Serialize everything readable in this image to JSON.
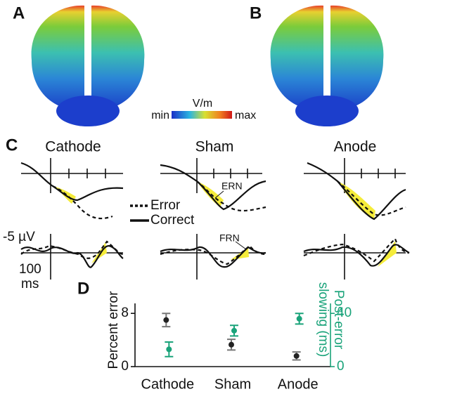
{
  "panels": {
    "a": "A",
    "b": "B",
    "c": "C",
    "d": "D"
  },
  "colorbar": {
    "unit": "V/m",
    "min": "min",
    "max": "max"
  },
  "erp": {
    "conditions": [
      "Cathode",
      "Sham",
      "Anode"
    ],
    "legend": {
      "error": "Error",
      "correct": "Correct"
    },
    "annotations": {
      "ern": "ERN",
      "frn": "FRN"
    },
    "scale": {
      "amplitude": "-5 µV",
      "time": "100",
      "time_unit": "ms"
    }
  },
  "chart_data": {
    "type": "errorbar",
    "categories": [
      "Cathode",
      "Sham",
      "Anode"
    ],
    "ylabel": "Percent error",
    "y2label": "Post-error slowing (ms)",
    "ylim": [
      0,
      9.5
    ],
    "yticks": [
      0,
      8
    ],
    "y2lim": [
      0,
      47.5
    ],
    "y2ticks": [
      0,
      40
    ],
    "series": [
      {
        "color": "#222222",
        "values": [
          7,
          3.3,
          1.6
        ],
        "errors": [
          1,
          0.8,
          0.6
        ]
      },
      {
        "color": "#1aa37a",
        "axis": "y2",
        "values": [
          13,
          27,
          36
        ],
        "errors": [
          5.5,
          4,
          4
        ]
      }
    ]
  }
}
